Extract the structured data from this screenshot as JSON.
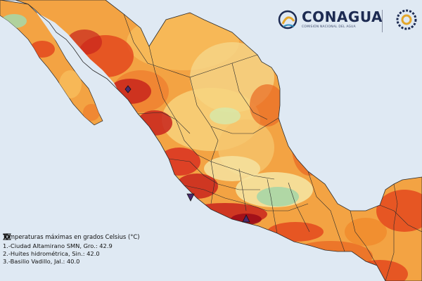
{
  "logo": {
    "name": "CONAGUA",
    "subtitle": "COMISIÓN NACIONAL DEL AGUA"
  },
  "legend": {
    "title": "Temperaturas máximas en grados Celsius (°C)",
    "items": [
      {
        "symbol": "triangle-up",
        "text": "1.-Ciudad Altamirano SMN, Gro.: 42.9"
      },
      {
        "symbol": "diamond",
        "text": "2.-Huites hidrométrica, Sin.: 42.0"
      },
      {
        "symbol": "triangle-down",
        "text": "3.-Basilio Vadillo, Jal.: 40.0"
      }
    ]
  },
  "colors": {
    "ocean": "#dfe9f3",
    "land_border": "#2b2b2b",
    "temp_very_hot": "#b5131b",
    "temp_hot": "#e2421c",
    "temp_warm": "#f08a2c",
    "temp_mild": "#f7bd5c",
    "temp_cool": "#f5e3a0",
    "temp_cold": "#a9d6a6",
    "brand_navy": "#1d2b52",
    "brand_gold": "#e4a62b"
  }
}
